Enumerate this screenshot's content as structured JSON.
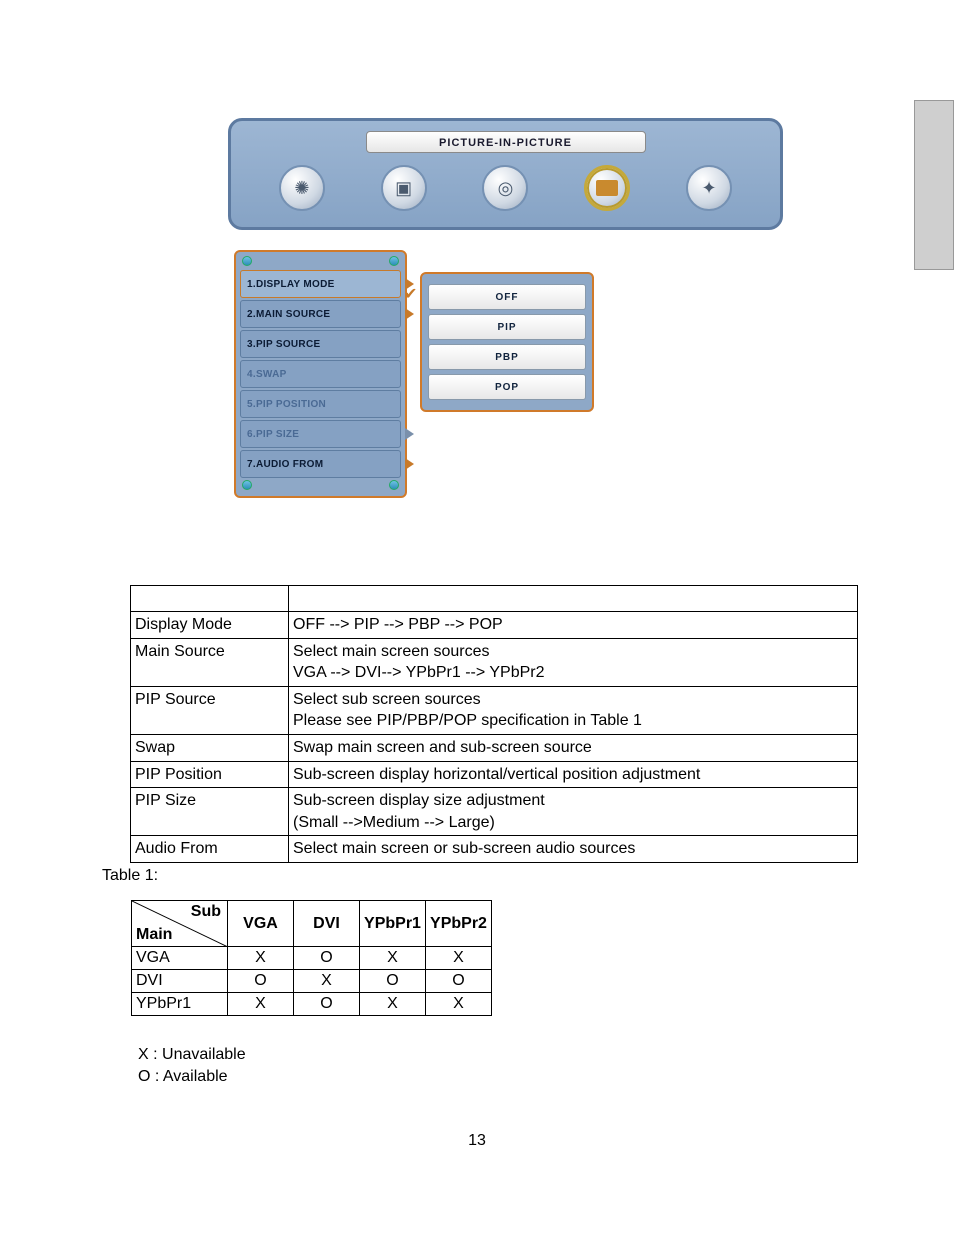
{
  "osd": {
    "title": "PICTURE-IN-PICTURE",
    "icons": [
      {
        "name": "gear-icon",
        "glyph": "✺"
      },
      {
        "name": "display-icon",
        "glyph": "▣"
      },
      {
        "name": "camera-icon",
        "glyph": "◎"
      },
      {
        "name": "pip-icon",
        "glyph": "",
        "selected": true
      },
      {
        "name": "tools-icon",
        "glyph": "✦"
      }
    ],
    "menu": [
      {
        "label": "1.DISPLAY MODE",
        "active": true,
        "arrow": "orange"
      },
      {
        "label": "2.MAIN SOURCE",
        "arrow": "orange"
      },
      {
        "label": "3.PIP SOURCE"
      },
      {
        "label": "4.SWAP",
        "disabled": true
      },
      {
        "label": "5.PIP POSITION",
        "disabled": true
      },
      {
        "label": "6.PIP SIZE",
        "disabled": true,
        "arrow": "gray"
      },
      {
        "label": "7.AUDIO FROM",
        "arrow": "orange"
      }
    ],
    "submenu": [
      "OFF",
      "PIP",
      "PBP",
      "POP"
    ],
    "panel_bg": "#8ea8c7",
    "panel_border": "#5d7aa0",
    "accent": "#d07a2a"
  },
  "desc": {
    "rows": [
      {
        "label": "Display Mode",
        "text": "OFF --> PIP --> PBP --> POP"
      },
      {
        "label": "Main Source",
        "text": "Select main screen sources\nVGA --> DVI--> YPbPr1 --> YPbPr2"
      },
      {
        "label": "PIP Source",
        "text": "Select sub screen sources\nPlease see PIP/PBP/POP specification in Table 1"
      },
      {
        "label": "Swap",
        "text": "Swap main screen and sub-screen source"
      },
      {
        "label": "PIP Position",
        "text": "Sub-screen display horizontal/vertical position adjustment"
      },
      {
        "label": "PIP Size",
        "text": "Sub-screen display size adjustment\n(Small -->Medium --> Large)"
      },
      {
        "label": "Audio From",
        "text": "Select main screen or sub-screen audio sources"
      }
    ]
  },
  "table1": {
    "label": "Table 1:",
    "diag_sub": "Sub",
    "diag_main": "Main",
    "columns": [
      "VGA",
      "DVI",
      "YPbPr1",
      "YPbPr2"
    ],
    "rows": [
      {
        "head": "VGA",
        "cells": [
          "X",
          "O",
          "X",
          "X"
        ]
      },
      {
        "head": "DVI",
        "cells": [
          "O",
          "X",
          "O",
          "O"
        ]
      },
      {
        "head": "YPbPr1",
        "cells": [
          "X",
          "O",
          "X",
          "X"
        ]
      }
    ]
  },
  "legend": {
    "x": "X : Unavailable",
    "o": "O : Available"
  },
  "page_number": "13"
}
